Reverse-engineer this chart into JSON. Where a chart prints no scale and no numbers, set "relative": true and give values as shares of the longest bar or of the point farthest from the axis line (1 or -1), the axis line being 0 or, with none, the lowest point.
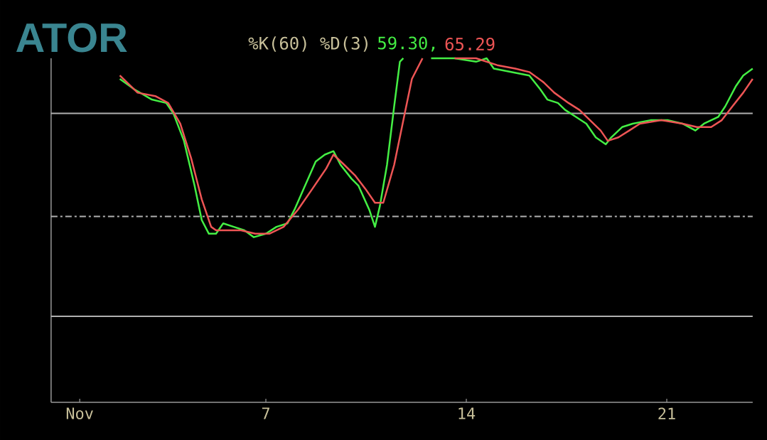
{
  "chart_data": {
    "type": "line",
    "title": "ATOR",
    "relative": true,
    "annotations": [
      "%K(60) %D(3)",
      "59.30,",
      "65.29"
    ],
    "xlim": [
      -0.5,
      24
    ],
    "xticks": [
      {
        "value": 0.5,
        "label": "Nov"
      },
      7,
      14,
      21
    ],
    "series": [
      {
        "color": "#44ee44",
        "x": [
          1.9,
          2.4,
          3.02,
          3.52,
          3.77,
          4.14,
          4.51,
          4.76,
          5.01,
          5.26,
          5.51,
          5.88,
          6.25,
          6.58,
          7.0,
          7.37,
          7.75,
          8.0,
          8.37,
          8.74,
          9.06,
          9.36,
          9.61,
          9.99,
          10.23,
          10.61,
          10.81,
          10.98,
          11.23,
          11.48,
          11.68,
          11.8,
          12.2,
          12.77,
          13.59,
          14.34,
          14.71,
          14.96,
          15.58,
          16.2,
          16.58,
          16.83,
          17.2,
          17.45,
          17.82,
          18.19,
          18.52,
          18.87,
          19.06,
          19.44,
          19.81,
          20.43,
          21.05,
          21.55,
          22.0,
          22.3,
          22.8,
          23.04,
          23.42,
          23.67,
          24.0
        ],
        "values": [
          0.94,
          0.91,
          0.88,
          0.87,
          0.84,
          0.76,
          0.63,
          0.53,
          0.49,
          0.49,
          0.52,
          0.51,
          0.5,
          0.48,
          0.49,
          0.51,
          0.52,
          0.56,
          0.63,
          0.7,
          0.72,
          0.73,
          0.69,
          0.65,
          0.63,
          0.56,
          0.51,
          0.57,
          0.69,
          0.86,
          0.99,
          1.0,
          null,
          1.0,
          1.0,
          0.99,
          1.0,
          0.97,
          0.96,
          0.95,
          0.91,
          0.88,
          0.87,
          0.85,
          0.83,
          0.81,
          0.77,
          0.75,
          0.77,
          0.8,
          0.81,
          0.82,
          0.82,
          0.81,
          0.79,
          0.81,
          0.83,
          0.86,
          0.92,
          0.95,
          0.97
        ]
      },
      {
        "color": "#ee5555",
        "x": [
          1.9,
          2.52,
          3.14,
          3.59,
          4.01,
          4.39,
          4.76,
          5.09,
          5.26,
          5.63,
          6.13,
          6.63,
          7.12,
          7.62,
          8.12,
          8.62,
          9.11,
          9.36,
          9.74,
          10.11,
          10.48,
          10.81,
          11.1,
          11.48,
          11.85,
          12.1,
          12.47,
          12.6,
          13.59,
          14.34,
          14.71,
          15.08,
          15.71,
          16.2,
          16.7,
          17.07,
          17.57,
          17.95,
          18.32,
          18.69,
          18.94,
          19.31,
          19.69,
          20.06,
          20.81,
          21.55,
          22.05,
          22.55,
          22.92,
          23.29,
          23.67,
          24.0
        ],
        "values": [
          0.95,
          0.9,
          0.89,
          0.87,
          0.81,
          0.71,
          0.59,
          0.51,
          0.5,
          0.5,
          0.5,
          0.49,
          0.49,
          0.51,
          0.56,
          0.62,
          0.68,
          0.72,
          0.69,
          0.66,
          0.62,
          0.58,
          0.58,
          0.69,
          0.84,
          0.94,
          1.0,
          null,
          1.0,
          1.0,
          0.99,
          0.98,
          0.97,
          0.96,
          0.93,
          0.9,
          0.87,
          0.85,
          0.82,
          0.79,
          0.76,
          0.77,
          0.79,
          0.81,
          0.82,
          0.81,
          0.8,
          0.8,
          0.82,
          0.86,
          0.9,
          0.94
        ]
      }
    ],
    "ref_lines": [
      {
        "axis": "y",
        "value": 0.84,
        "color": "#b0b0b0",
        "line_style": "solid"
      },
      {
        "axis": "y",
        "value": 0.54,
        "color": "#b0b0b0",
        "line_style": "dashed"
      },
      {
        "axis": "y",
        "value": 0.25,
        "color": "#b0b0b0",
        "line_style": "solid"
      }
    ]
  }
}
